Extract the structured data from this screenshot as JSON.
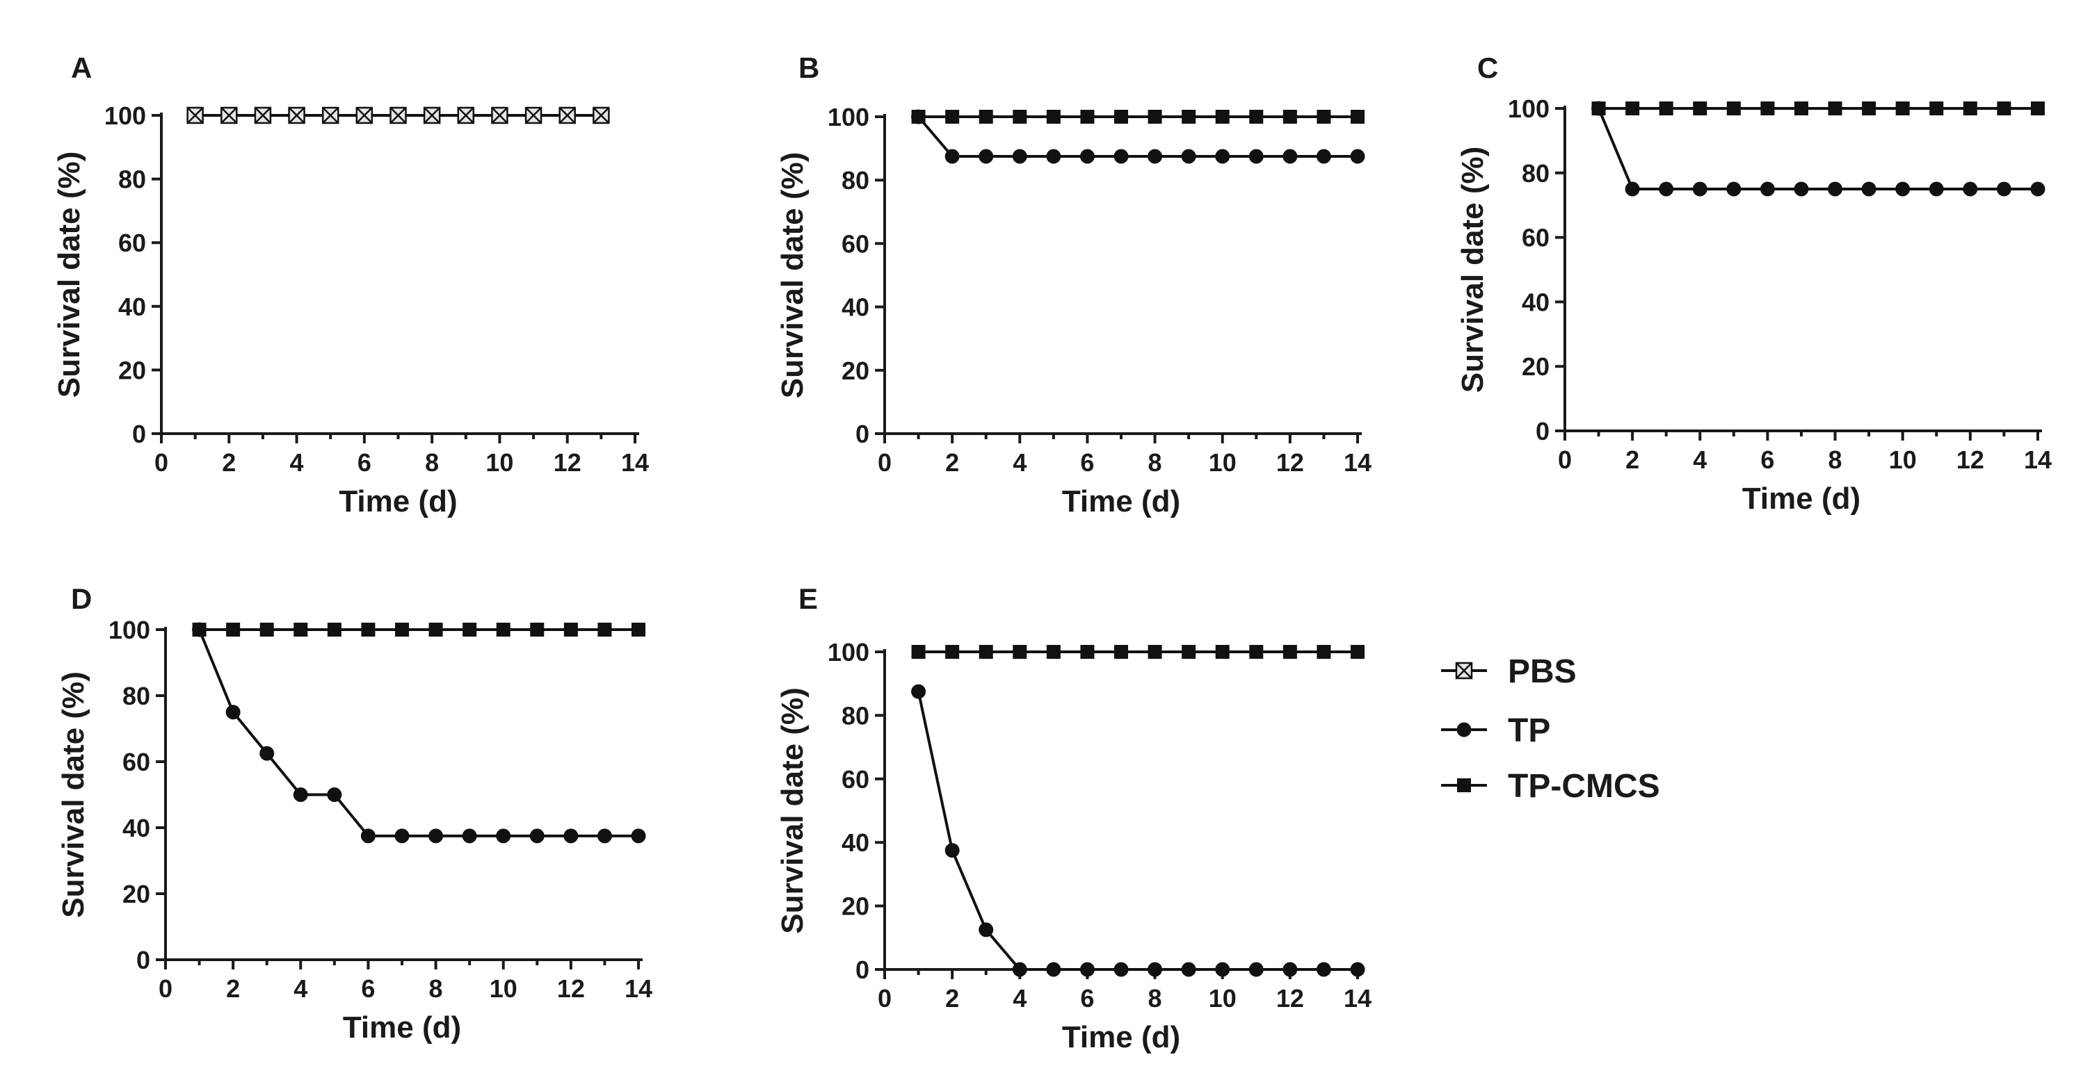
{
  "chart_data": [
    {
      "panel": "A",
      "type": "line",
      "xlabel": "Time (d)",
      "ylabel": "Survival date (%)",
      "xlim": [
        0,
        14
      ],
      "ylim": [
        0,
        100
      ],
      "xticks": [
        0,
        2,
        4,
        6,
        8,
        10,
        12,
        14
      ],
      "yticks": [
        0,
        20,
        40,
        60,
        80,
        100
      ],
      "series": [
        {
          "name": "PBS",
          "x": [
            1,
            2,
            3,
            4,
            5,
            6,
            7,
            8,
            9,
            10,
            11,
            12,
            13
          ],
          "values": [
            100,
            100,
            100,
            100,
            100,
            100,
            100,
            100,
            100,
            100,
            100,
            100,
            100
          ]
        }
      ]
    },
    {
      "panel": "B",
      "type": "line",
      "xlabel": "Time (d)",
      "ylabel": "Survival date (%)",
      "xlim": [
        0,
        14
      ],
      "ylim": [
        0,
        100
      ],
      "xticks": [
        0,
        2,
        4,
        6,
        8,
        10,
        12,
        14
      ],
      "yticks": [
        0,
        20,
        40,
        60,
        80,
        100
      ],
      "series": [
        {
          "name": "TP-CMCS",
          "x": [
            1,
            2,
            3,
            4,
            5,
            6,
            7,
            8,
            9,
            10,
            11,
            12,
            13,
            14
          ],
          "values": [
            100,
            100,
            100,
            100,
            100,
            100,
            100,
            100,
            100,
            100,
            100,
            100,
            100,
            100
          ]
        },
        {
          "name": "TP",
          "x": [
            1,
            2,
            3,
            4,
            5,
            6,
            7,
            8,
            9,
            10,
            11,
            12,
            13,
            14
          ],
          "values": [
            100,
            87.5,
            87.5,
            87.5,
            87.5,
            87.5,
            87.5,
            87.5,
            87.5,
            87.5,
            87.5,
            87.5,
            87.5,
            87.5
          ]
        }
      ]
    },
    {
      "panel": "C",
      "type": "line",
      "xlabel": "Time (d)",
      "ylabel": "Survival date (%)",
      "xlim": [
        0,
        14
      ],
      "ylim": [
        0,
        100
      ],
      "xticks": [
        0,
        2,
        4,
        6,
        8,
        10,
        12,
        14
      ],
      "yticks": [
        0,
        20,
        40,
        60,
        80,
        100
      ],
      "series": [
        {
          "name": "TP-CMCS",
          "x": [
            1,
            2,
            3,
            4,
            5,
            6,
            7,
            8,
            9,
            10,
            11,
            12,
            13,
            14
          ],
          "values": [
            100,
            100,
            100,
            100,
            100,
            100,
            100,
            100,
            100,
            100,
            100,
            100,
            100,
            100
          ]
        },
        {
          "name": "TP",
          "x": [
            1,
            2,
            3,
            4,
            5,
            6,
            7,
            8,
            9,
            10,
            11,
            12,
            13,
            14
          ],
          "values": [
            100,
            75,
            75,
            75,
            75,
            75,
            75,
            75,
            75,
            75,
            75,
            75,
            75,
            75
          ]
        }
      ]
    },
    {
      "panel": "D",
      "type": "line",
      "xlabel": "Time (d)",
      "ylabel": "Survival date (%)",
      "xlim": [
        0,
        14
      ],
      "ylim": [
        0,
        100
      ],
      "xticks": [
        0,
        2,
        4,
        6,
        8,
        10,
        12,
        14
      ],
      "yticks": [
        0,
        20,
        40,
        60,
        80,
        100
      ],
      "series": [
        {
          "name": "TP-CMCS",
          "x": [
            1,
            2,
            3,
            4,
            5,
            6,
            7,
            8,
            9,
            10,
            11,
            12,
            13,
            14
          ],
          "values": [
            100,
            100,
            100,
            100,
            100,
            100,
            100,
            100,
            100,
            100,
            100,
            100,
            100,
            100
          ]
        },
        {
          "name": "TP",
          "x": [
            1,
            2,
            3,
            4,
            5,
            6,
            7,
            8,
            9,
            10,
            11,
            12,
            13,
            14
          ],
          "values": [
            100,
            75,
            62.5,
            50,
            50,
            37.5,
            37.5,
            37.5,
            37.5,
            37.5,
            37.5,
            37.5,
            37.5,
            37.5
          ]
        }
      ]
    },
    {
      "panel": "E",
      "type": "line",
      "xlabel": "Time (d)",
      "ylabel": "Survival date (%)",
      "xlim": [
        0,
        14
      ],
      "ylim": [
        0,
        100
      ],
      "xticks": [
        0,
        2,
        4,
        6,
        8,
        10,
        12,
        14
      ],
      "yticks": [
        0,
        20,
        40,
        60,
        80,
        100
      ],
      "series": [
        {
          "name": "TP-CMCS",
          "x": [
            1,
            2,
            3,
            4,
            5,
            6,
            7,
            8,
            9,
            10,
            11,
            12,
            13,
            14
          ],
          "values": [
            100,
            100,
            100,
            100,
            100,
            100,
            100,
            100,
            100,
            100,
            100,
            100,
            100,
            100
          ]
        },
        {
          "name": "TP",
          "x": [
            1,
            2,
            3,
            4,
            5,
            6,
            7,
            8,
            9,
            10,
            11,
            12,
            13,
            14
          ],
          "values": [
            87.5,
            37.5,
            12.5,
            0,
            0,
            0,
            0,
            0,
            0,
            0,
            0,
            0,
            0,
            0
          ]
        }
      ]
    }
  ],
  "legend": {
    "placement": "right",
    "items": [
      {
        "label": "PBS",
        "marker": "boxed-x"
      },
      {
        "label": "TP",
        "marker": "circle"
      },
      {
        "label": "TP-CMCS",
        "marker": "square"
      }
    ]
  },
  "colors": {
    "ink": "#111111",
    "pbs_fill": "#e6e6e6",
    "background": "#ffffff"
  }
}
